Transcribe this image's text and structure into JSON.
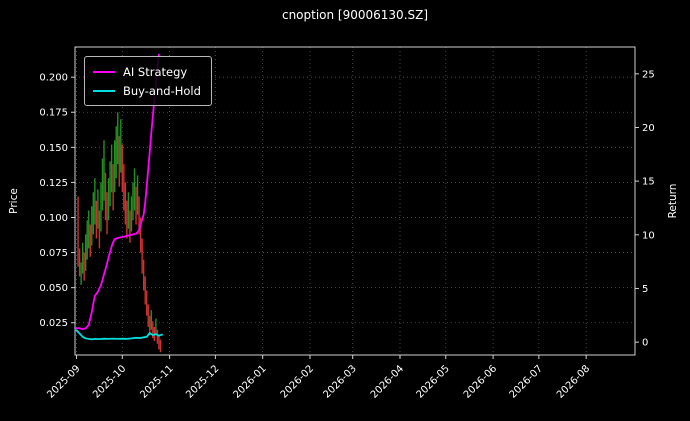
{
  "chart_data": {
    "type": "line+candlestick",
    "title": "cnoption [90006130.SZ]",
    "ylabel_left": "Price",
    "ylabel_right": "Return",
    "background": "#000000",
    "text_color": "#ffffff",
    "grid_color": "#555555",
    "spine_color": "#d0d0d0",
    "grid": true,
    "xlim_days": [
      -1,
      366
    ],
    "ylim_price": [
      0.002,
      0.2215
    ],
    "ylim_return": [
      -1.2,
      27.5
    ],
    "price_ticks": [
      0.025,
      0.05,
      0.075,
      0.1,
      0.125,
      0.15,
      0.175,
      0.2
    ],
    "return_ticks": [
      0,
      5,
      10,
      15,
      20,
      25
    ],
    "x_ticks": [
      {
        "day": 0,
        "label": "2025-09"
      },
      {
        "day": 30,
        "label": "2025-10"
      },
      {
        "day": 61,
        "label": "2025-11"
      },
      {
        "day": 91,
        "label": "2025-12"
      },
      {
        "day": 122,
        "label": "2026-01"
      },
      {
        "day": 153,
        "label": "2026-02"
      },
      {
        "day": 181,
        "label": "2026-03"
      },
      {
        "day": 212,
        "label": "2026-04"
      },
      {
        "day": 242,
        "label": "2026-05"
      },
      {
        "day": 273,
        "label": "2026-06"
      },
      {
        "day": 303,
        "label": "2026-07"
      },
      {
        "day": 334,
        "label": "2026-08"
      }
    ],
    "legend": {
      "position": "upper-left",
      "entries": [
        {
          "label": "AI Strategy",
          "color": "#ff00ff"
        },
        {
          "label": "Buy-and-Hold",
          "color": "#00dddd"
        }
      ]
    },
    "series": [
      {
        "name": "AI Strategy",
        "axis": "return",
        "color": "#ff00ff",
        "points": [
          [
            0,
            1.3
          ],
          [
            2,
            1.3
          ],
          [
            4,
            1.2
          ],
          [
            6,
            1.3
          ],
          [
            8,
            1.6
          ],
          [
            9,
            2.2
          ],
          [
            10,
            2.8
          ],
          [
            11,
            3.6
          ],
          [
            12,
            4.3
          ],
          [
            13,
            4.5
          ],
          [
            14,
            4.7
          ],
          [
            15,
            5.0
          ],
          [
            16,
            5.3
          ],
          [
            17,
            5.8
          ],
          [
            18,
            6.3
          ],
          [
            19,
            6.8
          ],
          [
            20,
            7.3
          ],
          [
            21,
            7.9
          ],
          [
            22,
            8.4
          ],
          [
            23,
            8.9
          ],
          [
            24,
            9.3
          ],
          [
            25,
            9.6
          ],
          [
            27,
            9.7
          ],
          [
            30,
            9.8
          ],
          [
            33,
            9.9
          ],
          [
            36,
            10.0
          ],
          [
            39,
            10.1
          ],
          [
            41,
            10.4
          ],
          [
            42,
            11.0
          ],
          [
            43,
            11.4
          ],
          [
            44,
            11.9
          ],
          [
            45,
            13.0
          ],
          [
            46,
            14.5
          ],
          [
            47,
            16.1
          ],
          [
            48,
            17.8
          ],
          [
            49,
            19.5
          ],
          [
            50,
            21.0
          ],
          [
            51,
            22.6
          ],
          [
            52,
            24.1
          ],
          [
            53,
            25.6
          ],
          [
            54,
            26.8
          ]
        ]
      },
      {
        "name": "Buy-and-Hold",
        "axis": "return",
        "color": "#00dddd",
        "points": [
          [
            0,
            1.1
          ],
          [
            2,
            0.8
          ],
          [
            4,
            0.5
          ],
          [
            6,
            0.35
          ],
          [
            8,
            0.3
          ],
          [
            10,
            0.25
          ],
          [
            12,
            0.3
          ],
          [
            15,
            0.28
          ],
          [
            18,
            0.32
          ],
          [
            21,
            0.3
          ],
          [
            24,
            0.33
          ],
          [
            27,
            0.3
          ],
          [
            30,
            0.32
          ],
          [
            33,
            0.3
          ],
          [
            36,
            0.35
          ],
          [
            39,
            0.4
          ],
          [
            42,
            0.38
          ],
          [
            44,
            0.45
          ],
          [
            46,
            0.5
          ],
          [
            48,
            0.85
          ],
          [
            50,
            0.65
          ],
          [
            52,
            0.75
          ],
          [
            54,
            0.6
          ],
          [
            56,
            0.7
          ]
        ]
      }
    ],
    "candles": {
      "axis": "price",
      "up_color": "#229122",
      "down_color": "#cd3232",
      "bars": [
        [
          1,
          0.065,
          0.115,
          "r"
        ],
        [
          2,
          0.058,
          0.078,
          "r"
        ],
        [
          3,
          0.052,
          0.068,
          "g"
        ],
        [
          4,
          0.06,
          0.082,
          "g"
        ],
        [
          5,
          0.055,
          0.075,
          "r"
        ],
        [
          6,
          0.062,
          0.088,
          "g"
        ],
        [
          7,
          0.07,
          0.098,
          "g"
        ],
        [
          8,
          0.078,
          0.105,
          "g"
        ],
        [
          9,
          0.072,
          0.095,
          "r"
        ],
        [
          10,
          0.08,
          0.108,
          "g"
        ],
        [
          11,
          0.088,
          0.118,
          "g"
        ],
        [
          12,
          0.095,
          0.128,
          "g"
        ],
        [
          13,
          0.085,
          0.112,
          "r"
        ],
        [
          14,
          0.092,
          0.12,
          "g"
        ],
        [
          15,
          0.078,
          0.105,
          "r"
        ],
        [
          16,
          0.09,
          0.125,
          "g"
        ],
        [
          17,
          0.105,
          0.142,
          "g"
        ],
        [
          18,
          0.112,
          0.155,
          "g"
        ],
        [
          19,
          0.098,
          0.132,
          "r"
        ],
        [
          20,
          0.088,
          0.118,
          "r"
        ],
        [
          21,
          0.098,
          0.128,
          "g"
        ],
        [
          22,
          0.108,
          0.14,
          "g"
        ],
        [
          23,
          0.118,
          0.152,
          "g"
        ],
        [
          24,
          0.105,
          0.138,
          "r"
        ],
        [
          25,
          0.118,
          0.155,
          "g"
        ],
        [
          26,
          0.128,
          0.165,
          "g"
        ],
        [
          27,
          0.138,
          0.175,
          "g"
        ],
        [
          28,
          0.122,
          0.158,
          "r"
        ],
        [
          29,
          0.132,
          0.17,
          "g"
        ],
        [
          30,
          0.118,
          0.152,
          "r"
        ],
        [
          31,
          0.105,
          0.138,
          "r"
        ],
        [
          32,
          0.095,
          0.125,
          "r"
        ],
        [
          33,
          0.085,
          0.112,
          "r"
        ],
        [
          34,
          0.092,
          0.118,
          "g"
        ],
        [
          35,
          0.082,
          0.105,
          "r"
        ],
        [
          36,
          0.09,
          0.115,
          "g"
        ],
        [
          37,
          0.098,
          0.125,
          "g"
        ],
        [
          38,
          0.105,
          0.135,
          "g"
        ],
        [
          39,
          0.095,
          0.122,
          "r"
        ],
        [
          40,
          0.102,
          0.13,
          "g"
        ],
        [
          41,
          0.088,
          0.115,
          "r"
        ],
        [
          42,
          0.075,
          0.1,
          "r"
        ],
        [
          43,
          0.06,
          0.085,
          "r"
        ],
        [
          44,
          0.048,
          0.07,
          "r"
        ],
        [
          45,
          0.038,
          0.058,
          "r"
        ],
        [
          46,
          0.03,
          0.048,
          "r"
        ],
        [
          47,
          0.022,
          0.038,
          "r"
        ],
        [
          48,
          0.016,
          0.03,
          "r"
        ],
        [
          49,
          0.02,
          0.034,
          "g"
        ],
        [
          50,
          0.014,
          0.026,
          "r"
        ],
        [
          51,
          0.012,
          0.022,
          "r"
        ],
        [
          52,
          0.016,
          0.028,
          "g"
        ],
        [
          53,
          0.01,
          0.02,
          "r"
        ],
        [
          54,
          0.006,
          0.016,
          "r"
        ],
        [
          55,
          0.004,
          0.013,
          "r"
        ]
      ]
    }
  }
}
